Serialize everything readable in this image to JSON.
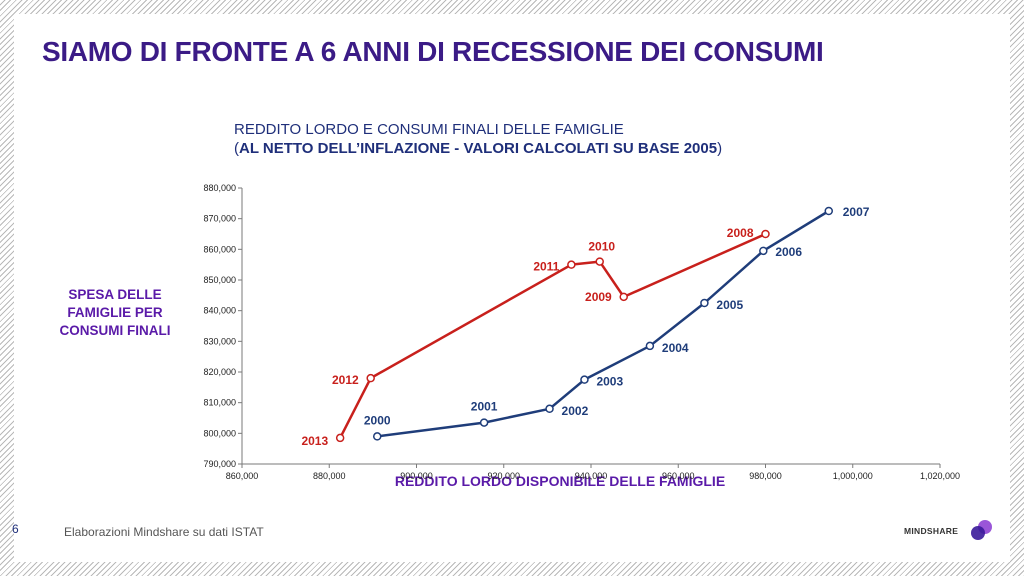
{
  "slide": {
    "title": "SIAMO DI FRONTE A 6 ANNI DI RECESSIONE DEI CONSUMI",
    "page_number": "6",
    "source": "Elaborazioni Mindshare su dati ISTAT",
    "logo_text": "MINDSHARE"
  },
  "chart_data": {
    "type": "scatter",
    "title": "REDDITO LORDO E CONSUMI FINALI DELLE FAMIGLIE",
    "subtitle_open": "(",
    "subtitle": "AL NETTO DELL’INFLAZIONE - VALORI CALCOLATI SU BASE 2005",
    "subtitle_close": ")",
    "xlabel": "REDDITO LORDO DISPONIBILE DELLE FAMIGLIE",
    "ylabel_lines": [
      "SPESA DELLE",
      "FAMIGLIE PER",
      "CONSUMI FINALI"
    ],
    "xlim": [
      860000,
      1020000
    ],
    "ylim": [
      790000,
      880000
    ],
    "x_ticks": [
      860000,
      880000,
      900000,
      920000,
      940000,
      960000,
      980000,
      1000000,
      1020000
    ],
    "y_ticks": [
      790000,
      800000,
      810000,
      820000,
      830000,
      840000,
      850000,
      860000,
      870000,
      880000
    ],
    "x_tick_labels": [
      "860,000",
      "880,000",
      "900,000",
      "920,000",
      "940,000",
      "960,000",
      "980,000",
      "1,000,000",
      "1,020,000"
    ],
    "y_tick_labels": [
      "790,000",
      "800,000",
      "810,000",
      "820,000",
      "830,000",
      "840,000",
      "850,000",
      "860,000",
      "870,000",
      "880,000"
    ],
    "grid": false,
    "legend": "none",
    "colors": {
      "blue": "#1f3d7a",
      "red": "#c8201c",
      "axis": "#7a7a7a",
      "tick_text": "#222222"
    },
    "series": [
      {
        "color": "#1f3d7a",
        "points": [
          {
            "label": "2000",
            "x": 891000,
            "y": 799000
          },
          {
            "label": "2001",
            "x": 915500,
            "y": 803500
          },
          {
            "label": "2002",
            "x": 930500,
            "y": 808000
          },
          {
            "label": "2003",
            "x": 938500,
            "y": 817500
          },
          {
            "label": "2004",
            "x": 953500,
            "y": 828500
          },
          {
            "label": "2005",
            "x": 966000,
            "y": 842500
          },
          {
            "label": "2006",
            "x": 979500,
            "y": 859500
          },
          {
            "label": "2007",
            "x": 994500,
            "y": 872500
          }
        ]
      },
      {
        "color": "#c8201c",
        "points": [
          {
            "label": "2008",
            "x": 980000,
            "y": 865000
          },
          {
            "label": "2009",
            "x": 947500,
            "y": 844500
          },
          {
            "label": "2010",
            "x": 942000,
            "y": 856000
          },
          {
            "label": "2011",
            "x": 935500,
            "y": 855000
          },
          {
            "label": "2012",
            "x": 889500,
            "y": 818000
          },
          {
            "label": "2013",
            "x": 882500,
            "y": 798500
          }
        ]
      }
    ]
  }
}
